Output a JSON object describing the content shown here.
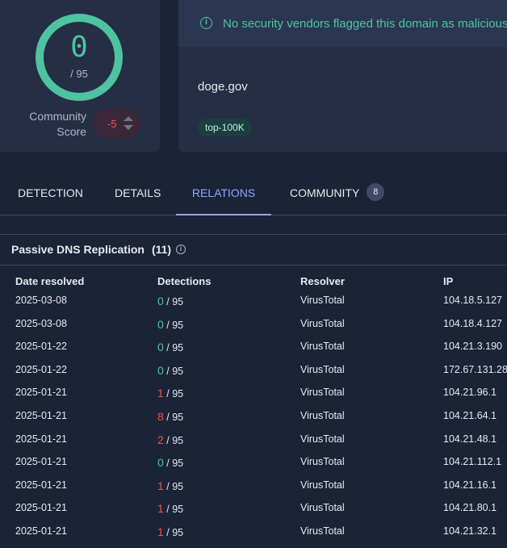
{
  "score": {
    "value": "0",
    "total": "/ 95",
    "ring_color": "#4fc3a1"
  },
  "community": {
    "label_line1": "Community",
    "label_line2": "Score",
    "value": "-5"
  },
  "banner": {
    "icon": "info-icon",
    "text": "No security vendors flagged this domain as malicious"
  },
  "domain": {
    "name": "doge.gov",
    "tag": "top-100K"
  },
  "tabs": [
    {
      "label": "DETECTION"
    },
    {
      "label": "DETAILS"
    },
    {
      "label": "RELATIONS",
      "active": true
    },
    {
      "label": "COMMUNITY",
      "count": "8"
    }
  ],
  "section": {
    "title": "Passive DNS Replication",
    "count": "(11)"
  },
  "table": {
    "headers": [
      "Date resolved",
      "Detections",
      "Resolver",
      "IP"
    ],
    "rows": [
      {
        "date": "2025-03-08",
        "det": "0",
        "total": "/ 95",
        "resolver": "VirusTotal",
        "ip": "104.18.5.127"
      },
      {
        "date": "2025-03-08",
        "det": "0",
        "total": "/ 95",
        "resolver": "VirusTotal",
        "ip": "104.18.4.127"
      },
      {
        "date": "2025-01-22",
        "det": "0",
        "total": "/ 95",
        "resolver": "VirusTotal",
        "ip": "104.21.3.190"
      },
      {
        "date": "2025-01-22",
        "det": "0",
        "total": "/ 95",
        "resolver": "VirusTotal",
        "ip": "172.67.131.28"
      },
      {
        "date": "2025-01-21",
        "det": "1",
        "total": "/ 95",
        "resolver": "VirusTotal",
        "ip": "104.21.96.1"
      },
      {
        "date": "2025-01-21",
        "det": "8",
        "total": "/ 95",
        "resolver": "VirusTotal",
        "ip": "104.21.64.1"
      },
      {
        "date": "2025-01-21",
        "det": "2",
        "total": "/ 95",
        "resolver": "VirusTotal",
        "ip": "104.21.48.1"
      },
      {
        "date": "2025-01-21",
        "det": "0",
        "total": "/ 95",
        "resolver": "VirusTotal",
        "ip": "104.21.112.1"
      },
      {
        "date": "2025-01-21",
        "det": "1",
        "total": "/ 95",
        "resolver": "VirusTotal",
        "ip": "104.21.16.1"
      },
      {
        "date": "2025-01-21",
        "det": "1",
        "total": "/ 95",
        "resolver": "VirusTotal",
        "ip": "104.21.80.1"
      },
      {
        "date": "2025-01-21",
        "det": "1",
        "total": "/ 95",
        "resolver": "VirusTotal",
        "ip": "104.21.32.1"
      }
    ]
  },
  "colors": {
    "clean": "#4fc3a1",
    "malicious": "#ef5350",
    "accent": "#8fa7ff"
  }
}
